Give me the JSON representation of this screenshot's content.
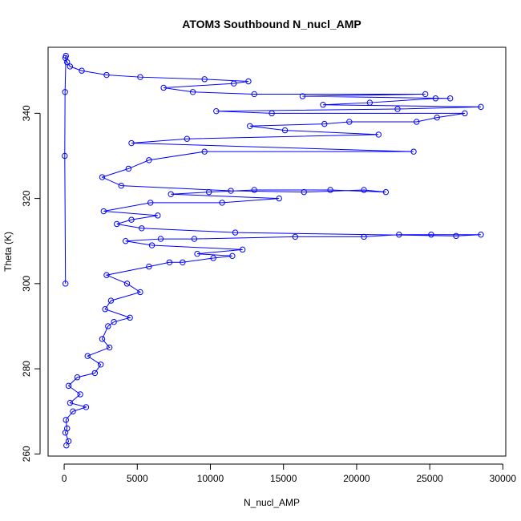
{
  "chart_data": {
    "type": "scatter",
    "title": "ATOM3 Southbound N_nucl_AMP",
    "xlabel": "N_nucl_AMP",
    "ylabel": "Theta (K)",
    "xlim": [
      -1100,
      30200
    ],
    "ylim": [
      259.5,
      355.5
    ],
    "x_ticks": [
      0,
      5000,
      10000,
      15000,
      20000,
      25000,
      30000
    ],
    "x_tick_labels": [
      "0",
      "5000",
      "10000",
      "15000",
      "20000",
      "25000",
      "30000"
    ],
    "y_ticks": [
      260,
      280,
      300,
      320,
      340
    ],
    "y_tick_labels": [
      "260",
      "280",
      "300",
      "320",
      "340"
    ],
    "grid": false,
    "legend": "none",
    "marker": "open-circle",
    "connected": true,
    "color": "#0000ff",
    "series": [
      {
        "values": [
          [
            150,
            262
          ],
          [
            300,
            263
          ],
          [
            80,
            265
          ],
          [
            200,
            266
          ],
          [
            120,
            268
          ],
          [
            600,
            270
          ],
          [
            1500,
            271
          ],
          [
            400,
            272
          ],
          [
            1100,
            274
          ],
          [
            300,
            276
          ],
          [
            900,
            278
          ],
          [
            2100,
            279
          ],
          [
            2500,
            281
          ],
          [
            1600,
            283
          ],
          [
            3100,
            285
          ],
          [
            2600,
            287
          ],
          [
            3000,
            290
          ],
          [
            3400,
            291
          ],
          [
            4500,
            292
          ],
          [
            2800,
            294
          ],
          [
            3200,
            296
          ],
          [
            5200,
            298
          ],
          [
            4300,
            300
          ],
          [
            2900,
            302
          ],
          [
            5800,
            304
          ],
          [
            7200,
            305
          ],
          [
            8100,
            305
          ],
          [
            10200,
            306
          ],
          [
            11500,
            306.5
          ],
          [
            9100,
            307
          ],
          [
            12200,
            308
          ],
          [
            6000,
            309
          ],
          [
            4200,
            310
          ],
          [
            6600,
            310.5
          ],
          [
            8900,
            310.5
          ],
          [
            15800,
            311
          ],
          [
            20500,
            311
          ],
          [
            22900,
            311.5
          ],
          [
            25100,
            311.5
          ],
          [
            28500,
            311.5
          ],
          [
            26800,
            311.2
          ],
          [
            11700,
            312
          ],
          [
            5300,
            313
          ],
          [
            3600,
            314
          ],
          [
            4600,
            315
          ],
          [
            6400,
            316
          ],
          [
            2700,
            317
          ],
          [
            5900,
            319
          ],
          [
            10800,
            319
          ],
          [
            14700,
            320
          ],
          [
            7300,
            321
          ],
          [
            9900,
            321.5
          ],
          [
            13000,
            322
          ],
          [
            18200,
            322
          ],
          [
            22000,
            321.5
          ],
          [
            20500,
            322
          ],
          [
            16400,
            321.5
          ],
          [
            11400,
            321.8
          ],
          [
            3900,
            323
          ],
          [
            2600,
            325
          ],
          [
            4400,
            327
          ],
          [
            5800,
            329
          ],
          [
            9600,
            331
          ],
          [
            23900,
            331
          ],
          [
            4600,
            333
          ],
          [
            8400,
            334
          ],
          [
            21500,
            335
          ],
          [
            15100,
            336
          ],
          [
            12700,
            337
          ],
          [
            17800,
            337.5
          ],
          [
            19500,
            338
          ],
          [
            24100,
            338
          ],
          [
            25500,
            339
          ],
          [
            27400,
            340
          ],
          [
            14200,
            340
          ],
          [
            10400,
            340.5
          ],
          [
            22800,
            341
          ],
          [
            28500,
            341.5
          ],
          [
            17700,
            342
          ],
          [
            20900,
            342.5
          ],
          [
            25400,
            343.5
          ],
          [
            26400,
            343.5
          ],
          [
            16300,
            344
          ],
          [
            24700,
            344.5
          ],
          [
            13000,
            344.5
          ],
          [
            8800,
            345
          ],
          [
            6800,
            346
          ],
          [
            11600,
            347
          ],
          [
            12600,
            347.5
          ],
          [
            9600,
            348
          ],
          [
            5200,
            348.5
          ],
          [
            2900,
            349
          ],
          [
            1200,
            350
          ],
          [
            400,
            351
          ],
          [
            200,
            352
          ],
          [
            80,
            353
          ],
          [
            120,
            353.5
          ],
          [
            60,
            345
          ],
          [
            40,
            330
          ],
          [
            90,
            300
          ]
        ]
      }
    ]
  }
}
